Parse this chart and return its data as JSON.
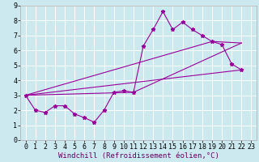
{
  "background_color": "#cce9f0",
  "grid_color": "#ffffff",
  "line_color": "#990099",
  "marker_color": "#990099",
  "xlabel": "Windchill (Refroidissement éolien,°C)",
  "ylabel_ticks": [
    0,
    1,
    2,
    3,
    4,
    5,
    6,
    7,
    8,
    9
  ],
  "xlim": [
    -0.5,
    23.5
  ],
  "ylim": [
    0,
    9
  ],
  "x_ticks": [
    0,
    1,
    2,
    3,
    4,
    5,
    6,
    7,
    8,
    9,
    10,
    11,
    12,
    13,
    14,
    15,
    16,
    17,
    18,
    19,
    20,
    21,
    22,
    23
  ],
  "series": [
    {
      "x": [
        0,
        1,
        2,
        3,
        4,
        5,
        6,
        7,
        8,
        9,
        10,
        11,
        12,
        13,
        14,
        15,
        16,
        17,
        18,
        19,
        20,
        21,
        22
      ],
      "y": [
        3.0,
        2.0,
        1.85,
        2.3,
        2.3,
        1.75,
        1.5,
        1.2,
        2.0,
        3.2,
        3.3,
        3.2,
        6.3,
        7.4,
        8.6,
        7.4,
        7.9,
        7.4,
        7.0,
        6.6,
        6.4,
        5.1,
        4.7
      ],
      "has_markers": true
    },
    {
      "x": [
        0,
        22
      ],
      "y": [
        3.0,
        4.7
      ],
      "has_markers": false
    },
    {
      "x": [
        0,
        11,
        22
      ],
      "y": [
        3.0,
        3.2,
        6.5
      ],
      "has_markers": false
    },
    {
      "x": [
        0,
        19,
        22
      ],
      "y": [
        3.0,
        6.6,
        6.5
      ],
      "has_markers": false
    }
  ],
  "xlabel_fontsize": 6.5,
  "tick_fontsize": 6.0,
  "figsize": [
    3.2,
    2.0
  ],
  "dpi": 100
}
